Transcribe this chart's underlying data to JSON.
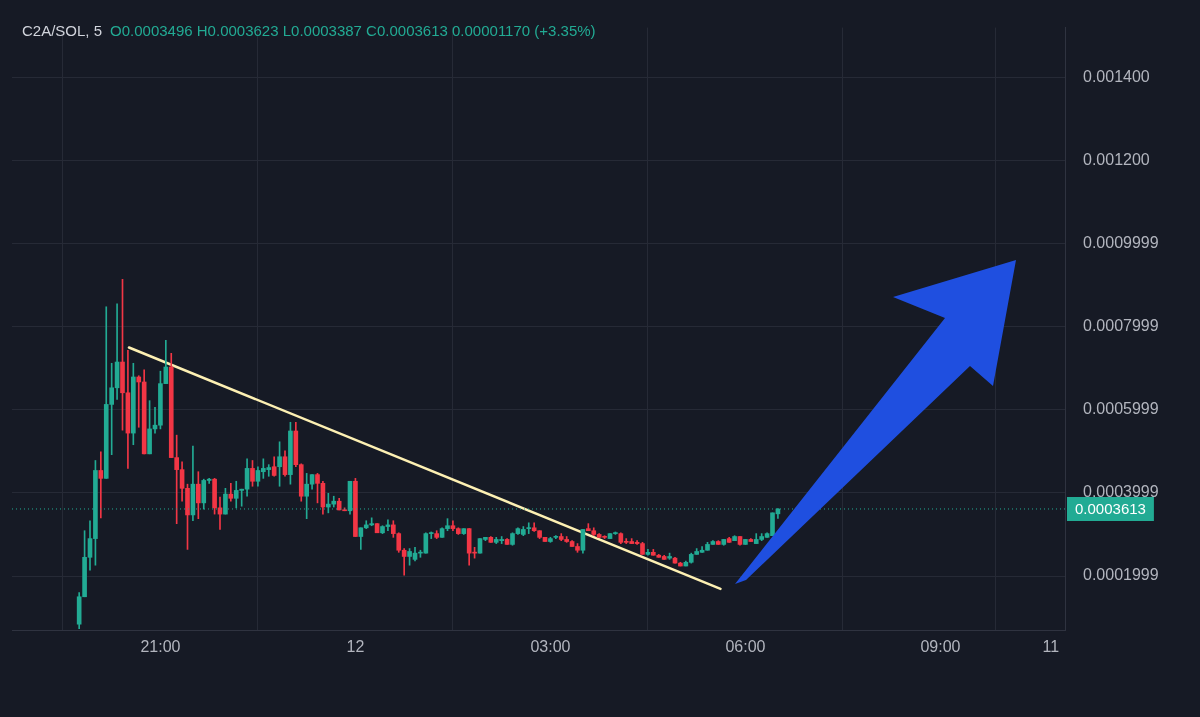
{
  "chart_data": {
    "type": "candlestick",
    "title": "C2A/SOL, 5",
    "subtitle": "O0.0003496 H0.0003623 L0.0003387 C0.0003613 0.00001170 (+3.35%)",
    "x": [
      "--01-11T19:45",
      "--01-11T19:50",
      "--01-11T19:55",
      "--01-11T20:00",
      "--01-11T20:05",
      "--01-11T20:10",
      "--01-11T20:15",
      "--01-11T20:20",
      "--01-11T20:25",
      "--01-11T20:30",
      "--01-11T20:35",
      "--01-11T20:40",
      "--01-11T20:45",
      "--01-11T20:50",
      "--01-11T20:55",
      "--01-11T21:00",
      "--01-11T21:05",
      "--01-11T21:10",
      "--01-11T21:15",
      "--01-11T21:20",
      "--01-11T21:25",
      "--01-11T21:30",
      "--01-11T21:35",
      "--01-11T21:40",
      "--01-11T21:45",
      "--01-11T21:50",
      "--01-11T21:55",
      "--01-11T22:00",
      "--01-11T22:05",
      "--01-11T22:10",
      "--01-11T22:15",
      "--01-11T22:20",
      "--01-11T22:25",
      "--01-11T22:30",
      "--01-11T22:35",
      "--01-11T22:40",
      "--01-11T22:45",
      "--01-11T22:50",
      "--01-11T22:55",
      "--01-11T23:00",
      "--01-11T23:05",
      "--01-11T23:10",
      "--01-11T23:15",
      "--01-11T23:20",
      "--01-11T23:25",
      "--01-11T23:30",
      "--01-11T23:35",
      "--01-11T23:40",
      "--01-11T23:45",
      "--01-11T23:50",
      "--01-11T23:55",
      "--01-12T00:00",
      "--01-12T00:05",
      "--01-12T00:10",
      "--01-12T00:15",
      "--01-12T00:20",
      "--01-12T00:25",
      "--01-12T00:30",
      "--01-12T00:35",
      "--01-12T00:40",
      "--01-12T00:45",
      "--01-12T00:50",
      "--01-12T00:55",
      "--01-12T01:00",
      "--01-12T01:05",
      "--01-12T01:10",
      "--01-12T01:15",
      "--01-12T01:20",
      "--01-12T01:25",
      "--01-12T01:30",
      "--01-12T01:35",
      "--01-12T01:40",
      "--01-12T01:45",
      "--01-12T01:50",
      "--01-12T01:55",
      "--01-12T02:00",
      "--01-12T02:05",
      "--01-12T02:10",
      "--01-12T02:15",
      "--01-12T02:20",
      "--01-12T02:25",
      "--01-12T02:30",
      "--01-12T02:35",
      "--01-12T02:40",
      "--01-12T02:45",
      "--01-12T02:50",
      "--01-12T02:55",
      "--01-12T03:00",
      "--01-12T03:05",
      "--01-12T03:10",
      "--01-12T03:15",
      "--01-12T03:20",
      "--01-12T03:25",
      "--01-12T03:30",
      "--01-12T03:35",
      "--01-12T03:40",
      "--01-12T03:45",
      "--01-12T03:50",
      "--01-12T03:55",
      "--01-12T04:00",
      "--01-12T04:05",
      "--01-12T04:10",
      "--01-12T04:15",
      "--01-12T04:20",
      "--01-12T04:25",
      "--01-12T04:30",
      "--01-12T04:35",
      "--01-12T04:40",
      "--01-12T04:45",
      "--01-12T04:50",
      "--01-12T04:55",
      "--01-12T05:00",
      "--01-12T05:05",
      "--01-12T05:10",
      "--01-12T05:15",
      "--01-12T05:20",
      "--01-12T05:25",
      "--01-12T05:30",
      "--01-12T05:35",
      "--01-12T05:40",
      "--01-12T05:45",
      "--01-12T05:50",
      "--01-12T05:55",
      "--01-12T06:00",
      "--01-12T06:05",
      "--01-12T06:10",
      "--01-12T06:15",
      "--01-12T06:20",
      "--01-12T06:25",
      "--01-12T06:30"
    ],
    "ohlc": [
      [
        8.4e-05,
        0.00016,
        7.3e-05,
        0.00015
      ],
      [
        0.00015,
        0.000309,
        0.00015,
        0.000245
      ],
      [
        0.000245,
        0.000333,
        0.000214,
        0.00029
      ],
      [
        0.00029,
        0.000478,
        0.000226,
        0.000454
      ],
      [
        0.000454,
        0.000499,
        0.00034,
        0.000435
      ],
      [
        0.000435,
        0.000848,
        0.000435,
        0.000613
      ],
      [
        0.000613,
        0.000712,
        0.000492,
        0.000653
      ],
      [
        0.000653,
        0.000855,
        0.000625,
        0.000715
      ],
      [
        0.000715,
        0.000914,
        0.000551,
        0.000641
      ],
      [
        0.000641,
        0.000743,
        0.000459,
        0.000544
      ],
      [
        0.000544,
        0.000712,
        0.000516,
        0.000679
      ],
      [
        0.000679,
        0.000682,
        0.000558,
        0.000667
      ],
      [
        0.000667,
        0.000696,
        0.000494,
        0.000494
      ],
      [
        0.000494,
        0.000622,
        0.000494,
        0.000554
      ],
      [
        0.000554,
        0.000606,
        0.000544,
        0.000563
      ],
      [
        0.000563,
        0.000693,
        0.000554,
        0.000663
      ],
      [
        0.000663,
        0.000767,
        0.000663,
        0.000703
      ],
      [
        0.000703,
        0.000736,
        0.000485,
        0.000485
      ],
      [
        0.000485,
        0.000539,
        0.000326,
        0.000456
      ],
      [
        0.000456,
        0.000475,
        0.00038,
        0.000411
      ],
      [
        0.000411,
        0.000421,
        0.000264,
        0.000347
      ],
      [
        0.000347,
        0.000513,
        0.000333,
        0.000421
      ],
      [
        0.000421,
        0.000451,
        0.000338,
        0.000376
      ],
      [
        0.000376,
        0.000433,
        0.000361,
        0.00043
      ],
      [
        0.00043,
        0.000435,
        0.000423,
        0.000433
      ],
      [
        0.000433,
        0.000435,
        0.000349,
        0.000364
      ],
      [
        0.000364,
        0.00039,
        0.000312,
        0.000349
      ],
      [
        0.000349,
        0.000411,
        0.000349,
        0.000397
      ],
      [
        0.000397,
        0.000423,
        0.00038,
        0.000387
      ],
      [
        0.000387,
        0.000428,
        0.000364,
        0.000406
      ],
      [
        0.000406,
        0.000409,
        0.000368,
        0.000409
      ],
      [
        0.000409,
        0.000482,
        0.000392,
        0.000459
      ],
      [
        0.000459,
        0.000478,
        0.000416,
        0.000428
      ],
      [
        0.000428,
        0.000463,
        0.000416,
        0.000454
      ],
      [
        0.000451,
        0.000482,
        0.000435,
        0.000459
      ],
      [
        0.000456,
        0.000468,
        0.00044,
        0.000461
      ],
      [
        0.000463,
        0.000487,
        0.00044,
        0.000442
      ],
      [
        0.000463,
        0.000523,
        0.000416,
        0.000487
      ],
      [
        0.000487,
        0.000501,
        0.00044,
        0.000444
      ],
      [
        0.000444,
        0.00057,
        0.000421,
        0.000549
      ],
      [
        0.000549,
        0.00057,
        0.000463,
        0.000468
      ],
      [
        0.000468,
        0.00047,
        0.00038,
        0.000392
      ],
      [
        0.000392,
        0.000447,
        0.000338,
        0.000421
      ],
      [
        0.000421,
        0.000444,
        0.000409,
        0.000444
      ],
      [
        0.000444,
        0.000447,
        0.000376,
        0.000423
      ],
      [
        0.000423,
        0.000428,
        0.000349,
        0.000366
      ],
      [
        0.000366,
        0.000399,
        0.000352,
        0.000373
      ],
      [
        0.000373,
        0.000392,
        0.000366,
        0.00038
      ],
      [
        0.00038,
        0.000387,
        0.000359,
        0.000359
      ],
      [
        0.000359,
        0.000364,
        0.000357,
        0.000357
      ],
      [
        0.000357,
        0.000428,
        0.000349,
        0.000428
      ],
      [
        0.000428,
        0.000435,
        0.000295,
        0.000295
      ],
      [
        0.000295,
        0.000316,
        0.000264,
        0.000316
      ],
      [
        0.000316,
        0.000333,
        0.000314,
        0.000323
      ],
      [
        0.000323,
        0.00034,
        0.000321,
        0.000326
      ],
      [
        0.000326,
        0.000326,
        0.000304,
        0.000304
      ],
      [
        0.000304,
        0.000321,
        0.000302,
        0.000319
      ],
      [
        0.000319,
        0.000335,
        0.000309,
        0.000323
      ],
      [
        0.000323,
        0.000333,
        0.000293,
        0.000302
      ],
      [
        0.000302,
        0.000304,
        0.000257,
        0.000262
      ],
      [
        0.000262,
        0.000266,
        0.000202,
        0.000247
      ],
      [
        0.000247,
        0.000266,
        0.000226,
        0.000259
      ],
      [
        0.00024,
        0.000269,
        0.000236,
        0.000255
      ],
      [
        0.000255,
        0.000262,
        0.000245,
        0.000257
      ],
      [
        0.000255,
        0.000304,
        0.000255,
        0.000302
      ],
      [
        0.000302,
        0.000306,
        0.00029,
        0.000304
      ],
      [
        0.000302,
        0.000309,
        0.00029,
        0.000293
      ],
      [
        0.000293,
        0.000316,
        0.000293,
        0.000314
      ],
      [
        0.000314,
        0.000338,
        0.000309,
        0.000321
      ],
      [
        0.000321,
        0.000333,
        0.000309,
        0.000314
      ],
      [
        0.000314,
        0.000316,
        0.0003,
        0.000302
      ],
      [
        0.000302,
        0.000314,
        0.0003,
        0.000314
      ],
      [
        0.000314,
        0.000314,
        0.000226,
        0.000255
      ],
      [
        0.000257,
        0.000269,
        0.000243,
        0.000255
      ],
      [
        0.000255,
        0.00029,
        0.000255,
        0.00029
      ],
      [
        0.000288,
        0.000293,
        0.000285,
        0.000293
      ],
      [
        0.000293,
        0.000295,
        0.000281,
        0.000281
      ],
      [
        0.000281,
        0.000293,
        0.000278,
        0.000288
      ],
      [
        0.000285,
        0.000295,
        0.000278,
        0.000288
      ],
      [
        0.000288,
        0.00029,
        0.000276,
        0.000276
      ],
      [
        0.000276,
        0.000304,
        0.000274,
        0.000302
      ],
      [
        0.000302,
        0.000316,
        0.0003,
        0.000314
      ],
      [
        0.0003,
        0.000319,
        0.000297,
        0.000312
      ],
      [
        0.000314,
        0.000328,
        0.000302,
        0.000316
      ],
      [
        0.000316,
        0.000328,
        0.000307,
        0.000309
      ],
      [
        0.000309,
        0.000309,
        0.00029,
        0.000293
      ],
      [
        0.000293,
        0.000293,
        0.000283,
        0.000283
      ],
      [
        0.000283,
        0.000293,
        0.000281,
        0.00029
      ],
      [
        0.000293,
        0.000297,
        0.00029,
        0.000295
      ],
      [
        0.000295,
        0.000302,
        0.000285,
        0.000288
      ],
      [
        0.000288,
        0.000295,
        0.000281,
        0.000283
      ],
      [
        0.000283,
        0.000285,
        0.000271,
        0.000271
      ],
      [
        0.000271,
        0.000278,
        0.000257,
        0.000262
      ],
      [
        0.000262,
        0.000312,
        0.000255,
        0.000312
      ],
      [
        0.000314,
        0.000326,
        0.000309,
        0.000309
      ],
      [
        0.000309,
        0.000316,
        0.000297,
        0.0003
      ],
      [
        0.0003,
        0.000302,
        0.000293,
        0.000293
      ],
      [
        0.000295,
        0.000297,
        0.00029,
        0.000293
      ],
      [
        0.00029,
        0.000302,
        0.00029,
        0.000302
      ],
      [
        0.000302,
        0.000306,
        0.0003,
        0.000304
      ],
      [
        0.000302,
        0.000304,
        0.000278,
        0.000281
      ],
      [
        0.000283,
        0.00029,
        0.000278,
        0.000281
      ],
      [
        0.000283,
        0.00029,
        0.000278,
        0.000278
      ],
      [
        0.000281,
        0.000285,
        0.000276,
        0.000278
      ],
      [
        0.000278,
        0.000281,
        0.000252,
        0.000252
      ],
      [
        0.000252,
        0.000264,
        0.00025,
        0.000257
      ],
      [
        0.000257,
        0.000264,
        0.00025,
        0.00025
      ],
      [
        0.00025,
        0.000252,
        0.000245,
        0.000245
      ],
      [
        0.000247,
        0.00025,
        0.00024,
        0.00024
      ],
      [
        0.000243,
        0.000255,
        0.00024,
        0.000247
      ],
      [
        0.000243,
        0.000245,
        0.000231,
        0.000231
      ],
      [
        0.000231,
        0.000233,
        0.000224,
        0.000224
      ],
      [
        0.000224,
        0.000236,
        0.000224,
        0.000233
      ],
      [
        0.000233,
        0.000255,
        0.000231,
        0.000252
      ],
      [
        0.000252,
        0.000266,
        0.000252,
        0.000259
      ],
      [
        0.000257,
        0.000271,
        0.000257,
        0.000262
      ],
      [
        0.000262,
        0.000281,
        0.000262,
        0.000276
      ],
      [
        0.000276,
        0.000285,
        0.000276,
        0.000283
      ],
      [
        0.000283,
        0.000285,
        0.000276,
        0.000276
      ],
      [
        0.000276,
        0.000288,
        0.000274,
        0.000288
      ],
      [
        0.00029,
        0.000293,
        0.000281,
        0.000281
      ],
      [
        0.000285,
        0.000297,
        0.000285,
        0.000295
      ],
      [
        0.000295,
        0.000295,
        0.000274,
        0.000276
      ],
      [
        0.000276,
        0.000288,
        0.000276,
        0.000288
      ],
      [
        0.000288,
        0.00029,
        0.000283,
        0.000283
      ],
      [
        0.000278,
        0.000302,
        0.000278,
        0.000288
      ],
      [
        0.000288,
        0.000302,
        0.000285,
        0.000295
      ],
      [
        0.000293,
        0.000304,
        0.000293,
        0.000302
      ],
      [
        0.000297,
        0.000352,
        0.000297,
        0.000352
      ],
      [
        0.0003496,
        0.0003623,
        0.0003387,
        0.0003613
      ]
    ],
    "series": [
      {
        "type": "line",
        "color": "#fdf0b3",
        "x": [
          "--01-11T20:31",
          "--01-12T05:37"
        ],
        "values": [
          0.00075,
          0.000169
        ]
      }
    ],
    "xlim": [
      "--01-11T18:43",
      "--01-12T10:55"
    ],
    "xticks": [
      {
        "value": "--01-11T21:00",
        "label": "21:00"
      },
      {
        "value": "--01-12T00:00",
        "label": "12"
      },
      {
        "value": "--01-12T03:00",
        "label": "03:00"
      },
      {
        "value": "--01-12T06:00",
        "label": "06:00"
      },
      {
        "value": "--01-12T09:00",
        "label": "09:00"
      },
      {
        "value": "--01-12T10:42",
        "label": "11"
      }
    ],
    "ylim": [
      7e-05,
      0.00152
    ],
    "yticks": [
      {
        "value": 0.0001999,
        "label": "0.0001999"
      },
      {
        "value": 0.0003999,
        "label": "0.0003999"
      },
      {
        "value": 0.0005999,
        "label": "0.0005999"
      },
      {
        "value": 0.0007999,
        "label": "0.0007999"
      },
      {
        "value": 0.0009999,
        "label": "0.0009999"
      },
      {
        "value": 0.0012,
        "label": "0.001200"
      },
      {
        "value": 0.0014,
        "label": "0.001400"
      }
    ],
    "ref_lines": [
      {
        "axis": "y",
        "value": 0.0003613,
        "label": "0.0003613",
        "color": "#22ab94",
        "line_style": "dotted"
      }
    ],
    "grid": true
  }
}
